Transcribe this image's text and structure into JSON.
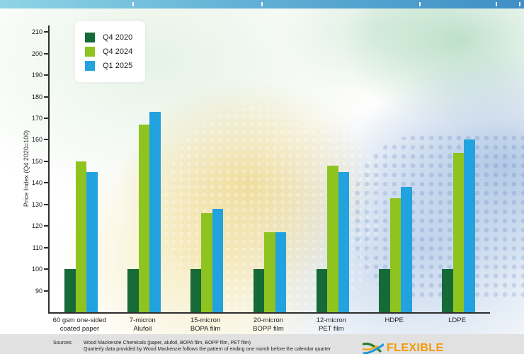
{
  "chart_data": {
    "type": "bar",
    "title": "",
    "ylabel": "Price Index (Q4 2020=100)",
    "ylim": [
      80,
      213
    ],
    "yticks": [
      90,
      100,
      110,
      120,
      130,
      140,
      150,
      160,
      170,
      180,
      190,
      200,
      210
    ],
    "grid": false,
    "legend_position": "top-left",
    "categories": [
      "60 gsm one-sided coated paper",
      "7-micron Alufoil",
      "15-micron BOPA film",
      "20-micron BOPP film",
      "12-micron PET film",
      "HDPE",
      "LDPE"
    ],
    "category_lines": [
      [
        "60 gsm one-sided",
        "coated paper"
      ],
      [
        "7-micron",
        "Alufoil"
      ],
      [
        "15-micron",
        "BOPA film"
      ],
      [
        "20-micron",
        "BOPP film"
      ],
      [
        "12-micron",
        "PET film"
      ],
      [
        "HDPE"
      ],
      [
        "LDPE"
      ]
    ],
    "series": [
      {
        "name": "Q4 2020",
        "color": "#166a38",
        "values": [
          100,
          100,
          100,
          100,
          100,
          100,
          100
        ]
      },
      {
        "name": "Q4 2024",
        "color": "#8fc31f",
        "values": [
          150,
          167,
          126,
          117,
          148,
          133,
          154
        ]
      },
      {
        "name": "Q1 2025",
        "color": "#22a2de",
        "values": [
          145,
          173,
          128,
          117,
          145,
          138,
          160
        ]
      }
    ]
  },
  "footer": {
    "sources_label": "Sources:",
    "source_lines": [
      "Wood Mackenzie Chemicals (paper, alufoil, BOPA film, BOPP film, PET film)",
      "Quarterly data provided by Wood Mackenzie follows the pattern of ending one month before the calendar quarter"
    ],
    "logo_text": "FLEXIBLE"
  },
  "colors": {
    "banner_left": "#8fd4e6",
    "banner_right": "#3f8ec6",
    "footer_bg": "#e1e1e1",
    "logo_orange": "#f49a00",
    "axis": "#2e2e2e"
  }
}
